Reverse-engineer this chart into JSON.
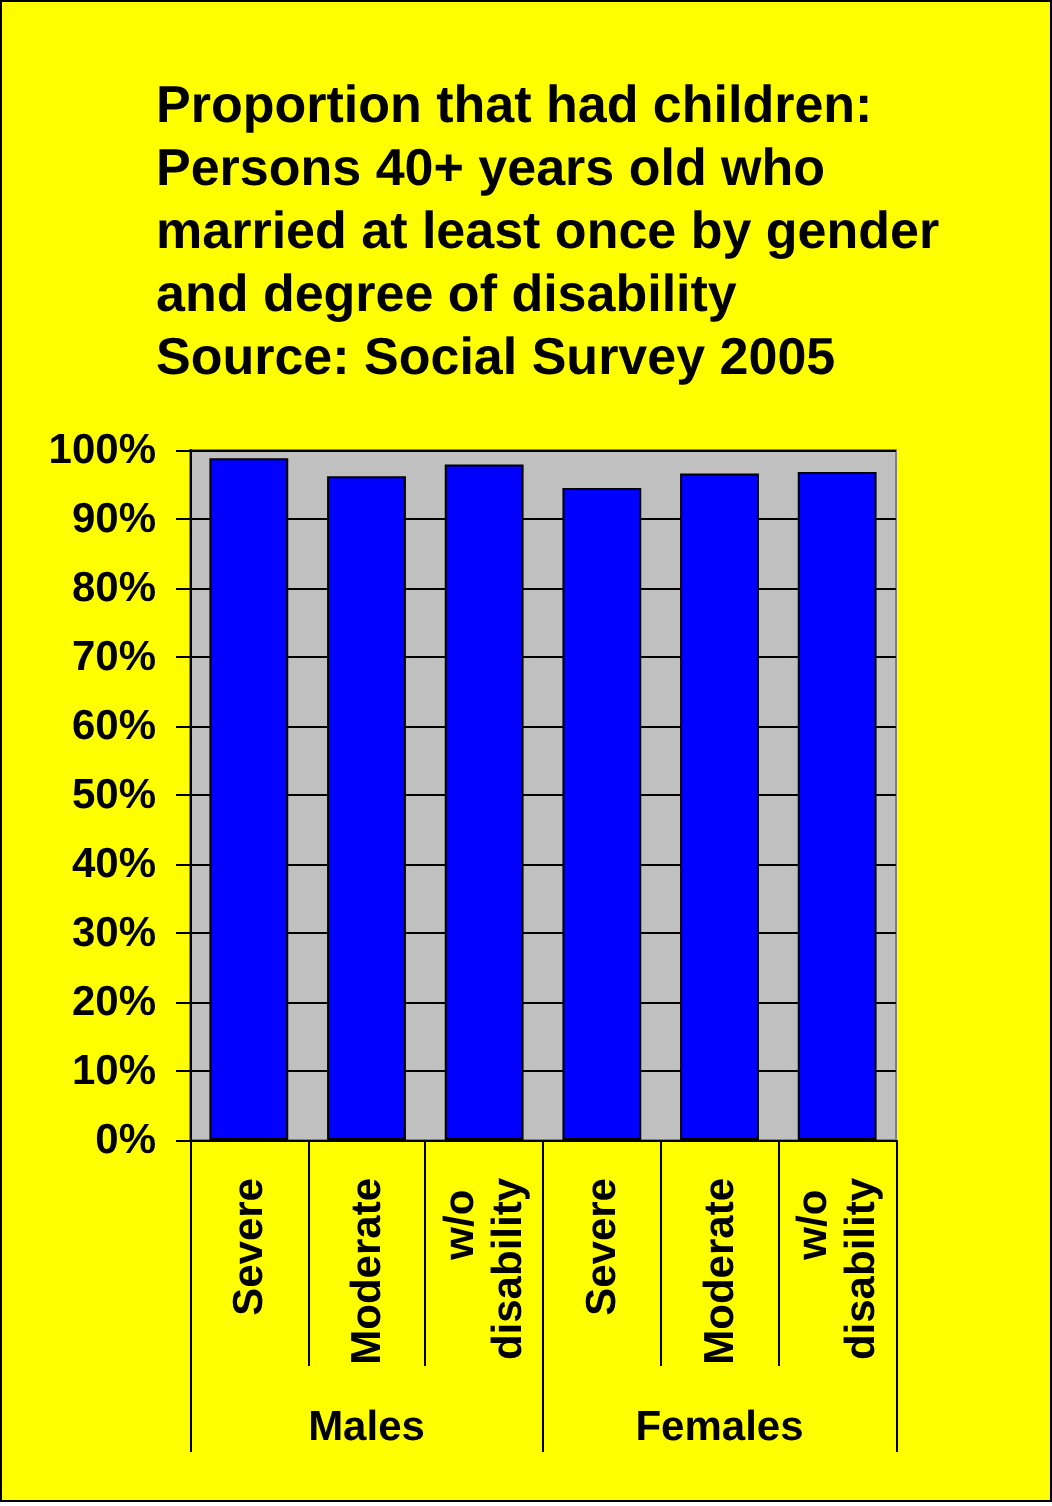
{
  "chart_data": {
    "type": "bar",
    "title": "Proportion that had children: Persons 40+ years old who married at least once by gender and degree of disability",
    "annotations": [
      "Source: Social Survey 2005",
      "Males",
      "Females"
    ],
    "categories": [
      "Severe",
      "Moderate",
      "w/o disability",
      "Severe",
      "Moderate",
      "w/o disability"
    ],
    "values": [
      98.8,
      96.2,
      97.9,
      94.5,
      96.6,
      96.8
    ],
    "color": "#0000ff",
    "ylim": [
      0,
      100
    ],
    "yticks": [
      {
        "value": 0,
        "label": "0%"
      },
      {
        "value": 10,
        "label": "10%"
      },
      {
        "value": 20,
        "label": "20%"
      },
      {
        "value": 30,
        "label": "30%"
      },
      {
        "value": 40,
        "label": "40%"
      },
      {
        "value": 50,
        "label": "50%"
      },
      {
        "value": 60,
        "label": "60%"
      },
      {
        "value": 70,
        "label": "70%"
      },
      {
        "value": 80,
        "label": "80%"
      },
      {
        "value": 90,
        "label": "90%"
      },
      {
        "value": 100,
        "label": "100%"
      }
    ],
    "grid": "y"
  }
}
